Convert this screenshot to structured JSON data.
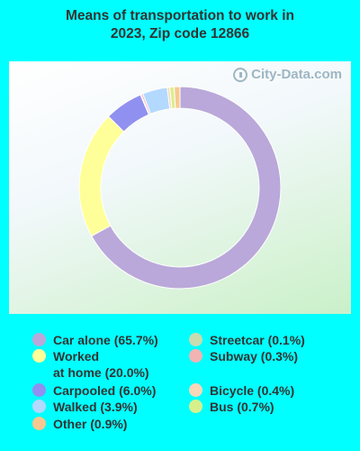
{
  "title": "Means of transportation to work in\n2023, Zip code 12866",
  "watermark": "City-Data.com",
  "chart_data": {
    "type": "pie",
    "title": "Means of transportation to work in 2023, Zip code 12866",
    "slices": [
      {
        "label": "Car alone",
        "value": 65.7,
        "color": "#B9A8D9"
      },
      {
        "label": "Worked at home",
        "value": 20.0,
        "color": "#FFFF99"
      },
      {
        "label": "Carpooled",
        "value": 6.0,
        "color": "#9090F0"
      },
      {
        "label": "Streetcar",
        "value": 0.1,
        "color": "#C8DCB0"
      },
      {
        "label": "Subway",
        "value": 0.3,
        "color": "#F2B3B3"
      },
      {
        "label": "Walked",
        "value": 3.9,
        "color": "#B3D9FF"
      },
      {
        "label": "Bicycle",
        "value": 0.4,
        "color": "#F8D8B8"
      },
      {
        "label": "Bus",
        "value": 0.7,
        "color": "#D8F08C"
      },
      {
        "label": "Other",
        "value": 0.9,
        "color": "#F8C890"
      }
    ]
  },
  "legend": {
    "items": [
      {
        "text": "Car alone (65.7%)",
        "color": "#B9A8D9"
      },
      {
        "text": "Worked\nat home (20.0%)",
        "color": "#FFFF99"
      },
      {
        "text": "Carpooled (6.0%)",
        "color": "#9090F0"
      },
      {
        "text": "Walked (3.9%)",
        "color": "#B3D9FF"
      },
      {
        "text": "Other (0.9%)",
        "color": "#F8C890"
      },
      {
        "text": "Streetcar (0.1%)",
        "color": "#C8DCB0"
      },
      {
        "text": "Subway (0.3%)",
        "color": "#F2B3B3"
      },
      {
        "text": "Bicycle (0.4%)",
        "color": "#F8D8B8"
      },
      {
        "text": "Bus (0.7%)",
        "color": "#D8F08C"
      }
    ]
  }
}
